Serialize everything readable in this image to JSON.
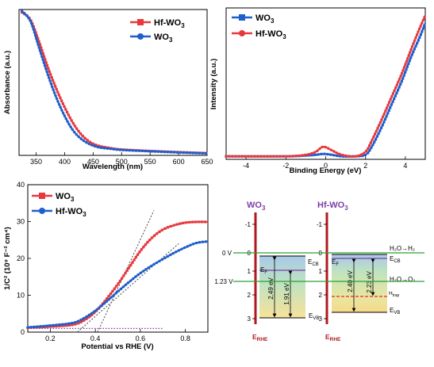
{
  "colors": {
    "red": "#e8383d",
    "blue": "#1f5fcc",
    "rhe": "#b0191e",
    "green": "#2ca02c",
    "purple": "#7b3fa8"
  },
  "chart_data": [
    {
      "id": "absorbance",
      "type": "line",
      "xlabel": "Wavelength (nm)",
      "ylabel": "Absorbance (a.u.)",
      "xlim": [
        320,
        650
      ],
      "ylim": [
        0,
        1
      ],
      "xticks": [
        "350",
        "400",
        "450",
        "500",
        "550",
        "600",
        "650"
      ],
      "legend_position": "top-right",
      "series": [
        {
          "name": "Hf-WO3",
          "name_base": "Hf-WO",
          "name_sub": "3",
          "color": "red",
          "x": [
            325,
            340,
            355,
            370,
            385,
            400,
            415,
            430,
            445,
            460,
            480,
            500,
            550,
            600,
            650
          ],
          "y": [
            0.98,
            0.93,
            0.78,
            0.61,
            0.46,
            0.33,
            0.22,
            0.14,
            0.09,
            0.065,
            0.05,
            0.04,
            0.03,
            0.022,
            0.015
          ]
        },
        {
          "name": "WO3",
          "name_base": "WO",
          "name_sub": "3",
          "color": "blue",
          "x": [
            325,
            340,
            355,
            370,
            385,
            400,
            415,
            430,
            445,
            460,
            480,
            500,
            550,
            600,
            650
          ],
          "y": [
            0.99,
            0.92,
            0.74,
            0.56,
            0.4,
            0.27,
            0.17,
            0.11,
            0.075,
            0.055,
            0.045,
            0.037,
            0.028,
            0.02,
            0.014
          ]
        }
      ]
    },
    {
      "id": "xps-valence",
      "type": "line",
      "xlabel": "Binding Energy (eV)",
      "ylabel": "Intensity (a.u.)",
      "xlim": [
        -5,
        5
      ],
      "ylim": [
        0,
        1
      ],
      "xticks": [
        "-4",
        "-2",
        "0",
        "2",
        "4"
      ],
      "legend_position": "top-left",
      "series": [
        {
          "name": "WO3",
          "name_base": "WO",
          "name_sub": "3",
          "color": "blue",
          "x": [
            -5,
            -2,
            -1,
            -0.5,
            -0.2,
            0,
            0.3,
            0.8,
            1.5,
            2.0,
            2.3,
            2.8,
            3.3,
            3.8,
            4.3,
            4.7,
            5.0
          ],
          "y": [
            0.02,
            0.02,
            0.025,
            0.03,
            0.035,
            0.035,
            0.03,
            0.02,
            0.02,
            0.03,
            0.08,
            0.21,
            0.36,
            0.51,
            0.68,
            0.8,
            0.9
          ]
        },
        {
          "name": "Hf-WO3",
          "name_base": "Hf-WO",
          "name_sub": "3",
          "color": "red",
          "x": [
            -5,
            -2,
            -1,
            -0.5,
            -0.2,
            0,
            0.3,
            0.8,
            1.5,
            2.0,
            2.3,
            2.8,
            3.3,
            3.8,
            4.3,
            4.7,
            5.0
          ],
          "y": [
            0.02,
            0.02,
            0.03,
            0.05,
            0.08,
            0.08,
            0.06,
            0.03,
            0.02,
            0.05,
            0.12,
            0.26,
            0.41,
            0.56,
            0.73,
            0.86,
            0.95
          ]
        }
      ]
    },
    {
      "id": "mott-schottky",
      "type": "line",
      "xlabel": "Potential vs RHE (V)",
      "ylabel": "1/C² (10⁹ F⁻² cm⁴)",
      "xlim": [
        0.1,
        0.9
      ],
      "ylim": [
        0,
        40
      ],
      "xticks": [
        "0.2",
        "0.4",
        "0.6",
        "0.8"
      ],
      "yticks": [
        "0",
        "10",
        "20",
        "30",
        "40"
      ],
      "legend_position": "top-left",
      "series": [
        {
          "name": "WO3",
          "name_base": "WO",
          "name_sub": "3",
          "color": "red",
          "x": [
            0.1,
            0.2,
            0.3,
            0.35,
            0.4,
            0.45,
            0.5,
            0.55,
            0.6,
            0.65,
            0.7,
            0.75,
            0.8,
            0.85,
            0.9
          ],
          "y": [
            1.2,
            1.5,
            2.0,
            3.2,
            5.5,
            9.0,
            13.0,
            17.5,
            22.0,
            25.5,
            27.8,
            29.0,
            29.7,
            29.9,
            29.9
          ]
        },
        {
          "name": "Hf-WO3",
          "name_base": "Hf-WO",
          "name_sub": "3",
          "color": "blue",
          "x": [
            0.1,
            0.2,
            0.3,
            0.35,
            0.4,
            0.45,
            0.5,
            0.55,
            0.6,
            0.65,
            0.7,
            0.75,
            0.8,
            0.85,
            0.9
          ],
          "y": [
            1.3,
            1.8,
            2.5,
            3.8,
            5.8,
            8.3,
            11.0,
            13.6,
            16.0,
            18.0,
            19.8,
            21.5,
            23.0,
            24.2,
            24.6
          ]
        }
      ],
      "tangents": [
        {
          "x": [
            0.41,
            0.66
          ],
          "y": [
            0,
            33
          ]
        },
        {
          "x": [
            0.32,
            0.77
          ],
          "y": [
            0,
            24
          ]
        }
      ],
      "baseline": {
        "x": [
          0.1,
          0.7
        ],
        "y": 1.0
      }
    }
  ],
  "band_diagram": {
    "left": {
      "title_base": "WO",
      "title_sub": "3",
      "axis_label_base": "E",
      "axis_label_sub": "RHE",
      "ticks": [
        "-1",
        "0",
        "1",
        "2",
        "3"
      ],
      "cb_label_base": "E",
      "cb_label_sub": "CB",
      "vb_label_base": "E",
      "vb_label_sub": "VB",
      "ef_label_base": "E",
      "ef_label_sub": "F",
      "gap1": "2.49 eV",
      "gap2": "1.91 eV"
    },
    "right": {
      "title_base": "Hf-WO",
      "title_sub": "3",
      "axis_label_base": "E",
      "axis_label_sub": "RHE",
      "ticks": [
        "-1",
        "0",
        "1",
        "2",
        "3"
      ],
      "cb_label_base": "E",
      "cb_label_sub": "CB",
      "vb_label_base": "E",
      "vb_label_sub": "VB",
      "ef_label_base": "E",
      "ef_label_sub": "F",
      "gap1": "2.40 eV",
      "gap2": "2.23 eV",
      "trap_label_base": "H",
      "trap_label_sub": "trap",
      "h2_reaction": "H₂O→H₂",
      "o2_reaction": "H₂O→O₂"
    },
    "level_0": "0 V",
    "level_123": "1.23 V"
  }
}
